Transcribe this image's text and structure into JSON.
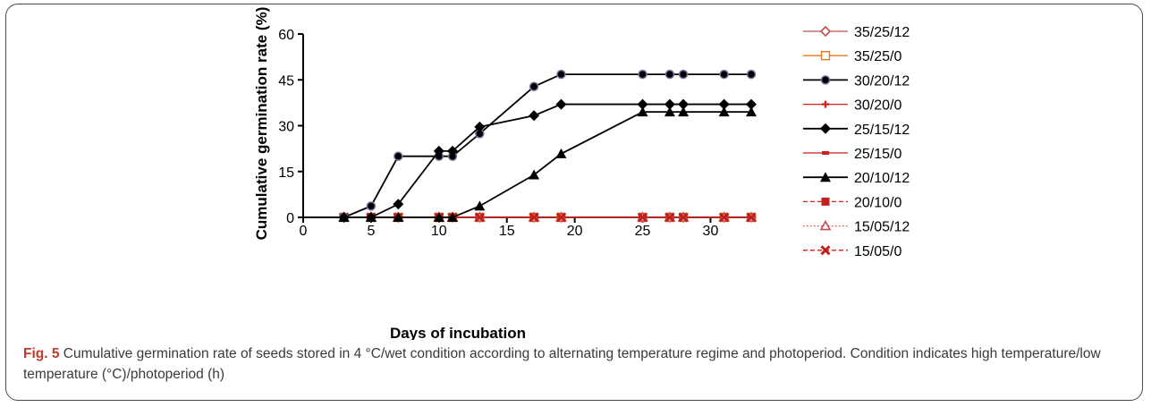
{
  "chart_data": {
    "type": "line",
    "xlabel": "Days of incubation",
    "ylabel": "Cumulative germination rate (%)",
    "xlim": [
      0,
      33
    ],
    "ylim": [
      0,
      60
    ],
    "xticks": [
      "0",
      "5",
      "10",
      "15",
      "20",
      "25",
      "30"
    ],
    "yticks": [
      "0",
      "15",
      "30",
      "45",
      "60"
    ],
    "x": [
      3,
      5,
      7,
      10,
      11,
      13,
      17,
      19,
      25,
      27,
      28,
      31,
      33
    ],
    "grid": false,
    "legend_position": "right",
    "series": [
      {
        "name": "35/25/12",
        "marker": "diamond-open",
        "color": "#c0504d",
        "dash": "solid",
        "values": [
          0,
          0,
          0,
          0,
          0,
          0,
          0,
          0,
          0,
          0,
          0,
          0,
          0
        ]
      },
      {
        "name": "35/25/0",
        "marker": "square-open",
        "color": "#e87722",
        "dash": "solid",
        "values": [
          0,
          0,
          0,
          0,
          0,
          0,
          0,
          0,
          0,
          0,
          0,
          0,
          0
        ]
      },
      {
        "name": "30/20/12",
        "marker": "circle",
        "color": "#000000",
        "dash": "solid",
        "values": [
          0,
          3.7,
          20,
          20,
          20,
          27.4,
          42.8,
          46.8,
          46.8,
          46.8,
          46.8,
          46.8,
          46.8
        ]
      },
      {
        "name": "30/20/0",
        "marker": "plus",
        "color": "#d42020",
        "dash": "solid",
        "values": [
          0,
          0,
          0,
          0,
          0,
          0,
          0,
          0,
          0,
          0,
          0,
          0,
          0
        ]
      },
      {
        "name": "25/15/12",
        "marker": "diamond",
        "color": "#000000",
        "dash": "solid",
        "values": [
          0,
          0,
          4.3,
          21.7,
          21.7,
          29.6,
          33.3,
          37,
          37,
          37,
          37,
          37,
          37
        ]
      },
      {
        "name": "25/15/0",
        "marker": "dash",
        "color": "#c8201e",
        "dash": "solid",
        "values": [
          0,
          0,
          0,
          0,
          0,
          0,
          0,
          0,
          0,
          0,
          0,
          0,
          0
        ]
      },
      {
        "name": "20/10/12",
        "marker": "triangle",
        "color": "#000000",
        "dash": "solid",
        "values": [
          0,
          0,
          0,
          0,
          0,
          3.7,
          13.9,
          20.8,
          34.5,
          34.5,
          34.5,
          34.5,
          34.5
        ]
      },
      {
        "name": "20/10/0",
        "marker": "square",
        "color": "#c0201e",
        "dash": "dashed",
        "values": [
          0,
          0,
          0,
          0,
          0,
          0,
          0,
          0,
          0,
          0,
          0,
          0,
          0
        ]
      },
      {
        "name": "15/05/12",
        "marker": "triangle-open",
        "color": "#c0504d",
        "dash": "dotted",
        "values": [
          0,
          0,
          0,
          0,
          0,
          0,
          0,
          0,
          0,
          0,
          0,
          0,
          0
        ]
      },
      {
        "name": "15/05/0",
        "marker": "x",
        "color": "#c0201e",
        "dash": "dashed",
        "values": [
          0,
          0,
          0,
          0,
          0,
          0,
          0,
          0,
          0,
          0,
          0,
          0,
          0
        ]
      }
    ]
  },
  "caption": {
    "label": "Fig. 5",
    "text": " Cumulative germination rate of seeds stored in 4 °C/wet condition according to alternating temperature regime and photoperiod. Condition indicates high temperature/low temperature (°C)/photoperiod (h)"
  }
}
